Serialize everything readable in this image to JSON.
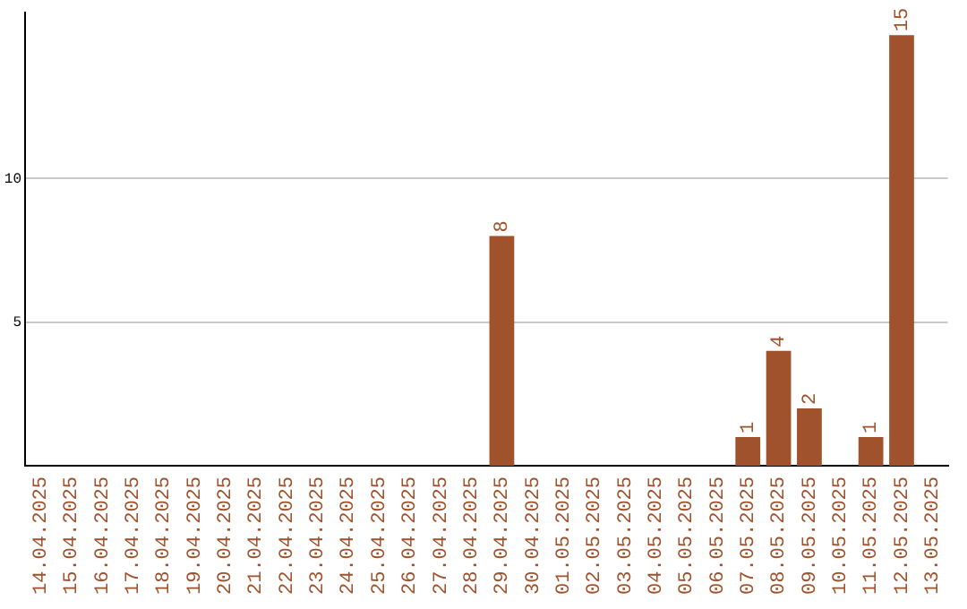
{
  "chart_data": {
    "type": "bar",
    "categories": [
      "14.04.2025",
      "15.04.2025",
      "16.04.2025",
      "17.04.2025",
      "18.04.2025",
      "19.04.2025",
      "20.04.2025",
      "21.04.2025",
      "22.04.2025",
      "23.04.2025",
      "24.04.2025",
      "25.04.2025",
      "26.04.2025",
      "27.04.2025",
      "28.04.2025",
      "29.04.2025",
      "30.04.2025",
      "01.05.2025",
      "02.05.2025",
      "03.05.2025",
      "04.05.2025",
      "05.05.2025",
      "06.05.2025",
      "07.05.2025",
      "08.05.2025",
      "09.05.2025",
      "10.05.2025",
      "11.05.2025",
      "12.05.2025",
      "13.05.2025"
    ],
    "values": [
      0,
      0,
      0,
      0,
      0,
      0,
      0,
      0,
      0,
      0,
      0,
      0,
      0,
      0,
      0,
      8,
      0,
      0,
      0,
      0,
      0,
      0,
      0,
      1,
      4,
      2,
      0,
      1,
      15,
      0
    ],
    "value_labels": [
      null,
      null,
      null,
      null,
      null,
      null,
      null,
      null,
      null,
      null,
      null,
      null,
      null,
      null,
      null,
      "8",
      null,
      null,
      null,
      null,
      null,
      null,
      null,
      "1",
      "4",
      "2",
      null,
      "1",
      "15",
      null
    ],
    "color": "#a0522d",
    "ylim": [
      0,
      15.8
    ],
    "yticks": [
      5,
      10
    ],
    "grid": "y",
    "legend": false
  }
}
